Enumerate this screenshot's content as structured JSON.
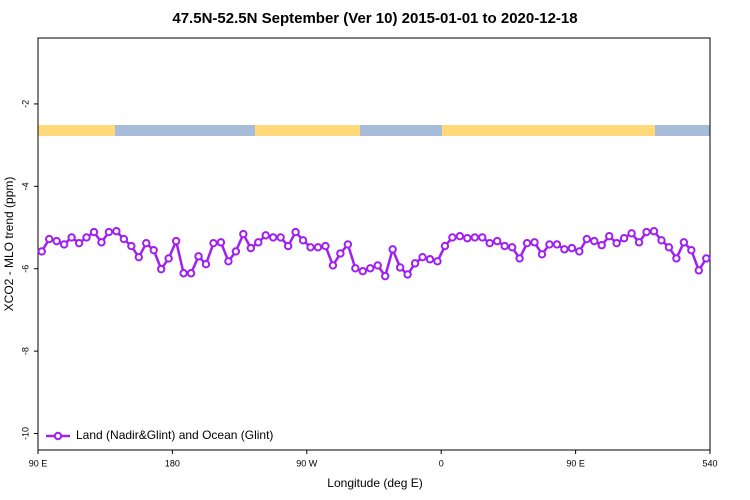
{
  "chart_data": {
    "type": "line",
    "title": "47.5N-52.5N September (Ver 10)   2015-01-01 to 2020-12-18",
    "xlabel": "Longitude (deg E)",
    "ylabel": "XCO2 - MLO trend (ppm)",
    "xlim": [
      90,
      540
    ],
    "ylim": [
      -10.4,
      -0.4
    ],
    "xticks": [
      {
        "value": 90,
        "label": "90 E"
      },
      180,
      {
        "value": 270,
        "label": "90 W"
      },
      {
        "value": 360,
        "label": "0"
      },
      {
        "value": 450,
        "label": "90 E"
      },
      540
    ],
    "yticks": [
      -2,
      -4,
      -6,
      -8,
      -10
    ],
    "legend": "lower left",
    "x": [
      92.5,
      97.5,
      102.5,
      107.5,
      112.5,
      117.5,
      122.5,
      127.5,
      132.5,
      137.5,
      142.5,
      147.5,
      152.5,
      157.5,
      162.5,
      167.5,
      172.5,
      177.5,
      182.5,
      187.5,
      192.5,
      197.5,
      202.5,
      207.5,
      212.5,
      217.5,
      222.5,
      227.5,
      232.5,
      237.5,
      242.5,
      247.5,
      252.5,
      257.5,
      262.5,
      267.5,
      272.5,
      277.5,
      282.5,
      287.5,
      292.5,
      297.5,
      302.5,
      307.5,
      312.5,
      317.5,
      322.5,
      327.5,
      332.5,
      337.5,
      342.5,
      347.5,
      352.5,
      357.5,
      362.5,
      367.5,
      372.5,
      377.5,
      382.5,
      387.5,
      392.5,
      397.5,
      402.5,
      407.5,
      412.5,
      417.5,
      422.5,
      427.5,
      432.5,
      437.5,
      442.5,
      447.5,
      452.5,
      457.5,
      462.5,
      467.5,
      472.5,
      477.5,
      482.5,
      487.5,
      492.5,
      497.5,
      502.5,
      507.5,
      512.5,
      517.5,
      522.5,
      527.5,
      532.5,
      537.5
    ],
    "series": [
      {
        "name": "Land (Nadir&Glint) and Ocean (Glint)",
        "color": "#a020f0",
        "values": [
          -5.58,
          -5.28,
          -5.33,
          -5.41,
          -5.24,
          -5.38,
          -5.24,
          -5.11,
          -5.36,
          -5.11,
          -5.09,
          -5.28,
          -5.45,
          -5.72,
          -5.38,
          -5.55,
          -6.01,
          -5.75,
          -5.33,
          -6.11,
          -6.11,
          -5.7,
          -5.89,
          -5.38,
          -5.36,
          -5.82,
          -5.58,
          -5.16,
          -5.5,
          -5.36,
          -5.19,
          -5.24,
          -5.24,
          -5.45,
          -5.11,
          -5.31,
          -5.48,
          -5.48,
          -5.45,
          -5.92,
          -5.63,
          -5.41,
          -5.99,
          -6.06,
          -5.99,
          -5.92,
          -6.18,
          -5.53,
          -5.97,
          -6.14,
          -5.87,
          -5.72,
          -5.77,
          -5.82,
          -5.45,
          -5.24,
          -5.21,
          -5.26,
          -5.24,
          -5.24,
          -5.38,
          -5.33,
          -5.45,
          -5.48,
          -5.75,
          -5.38,
          -5.36,
          -5.65,
          -5.41,
          -5.41,
          -5.53,
          -5.5,
          -5.58,
          -5.28,
          -5.33,
          -5.43,
          -5.21,
          -5.38,
          -5.26,
          -5.14,
          -5.36,
          -5.11,
          -5.09,
          -5.31,
          -5.48,
          -5.75,
          -5.36,
          -5.55,
          -6.04,
          -5.75
        ]
      }
    ]
  }
}
